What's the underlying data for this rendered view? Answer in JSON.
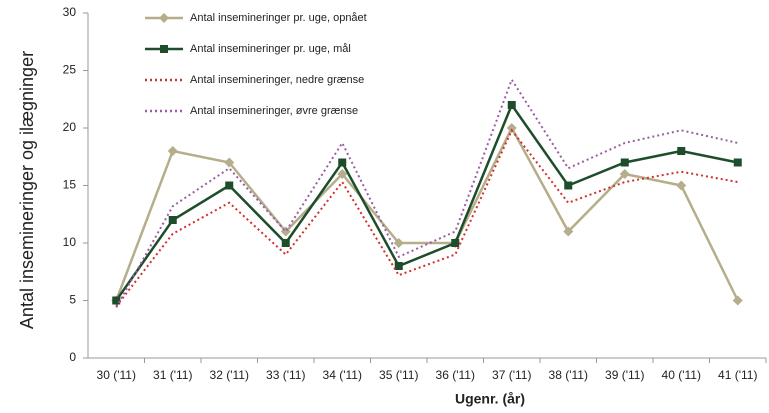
{
  "chart_data": {
    "type": "line",
    "x_label": "Ugenr. (år)",
    "y_label": "Antal insemineringer og ilægninger",
    "categories": [
      "30 ('11)",
      "31 ('11)",
      "32 ('11)",
      "33 ('11)",
      "34 ('11)",
      "35 ('11)",
      "36 ('11)",
      "37 ('11)",
      "38 ('11)",
      "39 ('11)",
      "40 ('11)",
      "41 ('11)"
    ],
    "series": [
      {
        "name": "Antal insemineringer pr. uge, opnået",
        "color": "#b5ae8a",
        "style": "solid",
        "marker": "diamond",
        "values": [
          5,
          18,
          17,
          11,
          16,
          10,
          10,
          20,
          11,
          16,
          15,
          5
        ]
      },
      {
        "name": "Antal insemineringer pr. uge, mål",
        "color": "#1e4d2b",
        "style": "solid",
        "marker": "square",
        "values": [
          5,
          12,
          15,
          10,
          17,
          8,
          10,
          22,
          15,
          17,
          18,
          17
        ]
      },
      {
        "name": "Antal insemineringer, nedre grænse",
        "color": "#d0302a",
        "style": "dotted",
        "marker": "none",
        "values": [
          4.5,
          10.8,
          13.5,
          9,
          15.3,
          7.2,
          9,
          19.8,
          13.5,
          15.3,
          16.2,
          15.3
        ]
      },
      {
        "name": "Antal insemineringer, øvre grænse",
        "color": "#9b5ca6",
        "style": "dotted",
        "marker": "none",
        "values": [
          4.4,
          13.2,
          16.5,
          11,
          18.7,
          8.8,
          11,
          24.2,
          16.5,
          18.7,
          19.8,
          18.7
        ]
      }
    ],
    "ylim": [
      0,
      30
    ],
    "yticks": [
      0,
      5,
      10,
      15,
      20,
      25,
      30
    ],
    "grid": false,
    "legend": "upper left"
  }
}
